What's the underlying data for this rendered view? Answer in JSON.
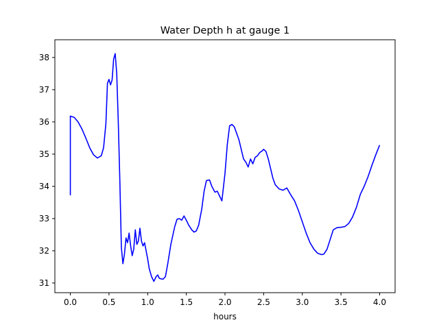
{
  "chart_data": {
    "type": "line",
    "title": "Water Depth h at gauge 1",
    "xlabel": "hours",
    "ylabel": "",
    "xlim": [
      -0.2,
      4.2
    ],
    "ylim": [
      30.7,
      38.55
    ],
    "xticks": [
      0.0,
      0.5,
      1.0,
      1.5,
      2.0,
      2.5,
      3.0,
      3.5,
      4.0
    ],
    "xtick_labels": [
      "0.0",
      "0.5",
      "1.0",
      "1.5",
      "2.0",
      "2.5",
      "3.0",
      "3.5",
      "4.0"
    ],
    "yticks": [
      31,
      32,
      33,
      34,
      35,
      36,
      37,
      38
    ],
    "ytick_labels": [
      "31",
      "32",
      "33",
      "34",
      "35",
      "36",
      "37",
      "38"
    ],
    "grid": false,
    "series_color": "#0000ff",
    "series": [
      {
        "x": [
          0.0,
          0.0,
          0.05,
          0.1,
          0.15,
          0.2,
          0.25,
          0.3,
          0.35,
          0.4,
          0.43,
          0.46,
          0.48,
          0.5,
          0.52,
          0.54,
          0.56,
          0.58,
          0.6,
          0.62,
          0.64,
          0.66,
          0.68,
          0.7,
          0.72,
          0.74,
          0.76,
          0.78,
          0.8,
          0.82,
          0.84,
          0.86,
          0.88,
          0.9,
          0.92,
          0.94,
          0.96,
          0.98,
          1.0,
          1.02,
          1.05,
          1.08,
          1.11,
          1.13,
          1.15,
          1.17,
          1.2,
          1.23,
          1.26,
          1.3,
          1.35,
          1.38,
          1.41,
          1.44,
          1.47,
          1.5,
          1.53,
          1.57,
          1.6,
          1.63,
          1.66,
          1.7,
          1.73,
          1.76,
          1.8,
          1.83,
          1.87,
          1.9,
          1.93,
          1.96,
          2.0,
          2.03,
          2.06,
          2.09,
          2.12,
          2.15,
          2.18,
          2.21,
          2.24,
          2.27,
          2.3,
          2.33,
          2.36,
          2.39,
          2.42,
          2.45,
          2.48,
          2.5,
          2.53,
          2.56,
          2.59,
          2.62,
          2.65,
          2.7,
          2.75,
          2.8,
          2.83,
          2.86,
          2.9,
          2.95,
          3.0,
          3.05,
          3.1,
          3.15,
          3.2,
          3.25,
          3.28,
          3.32,
          3.36,
          3.4,
          3.45,
          3.5,
          3.55,
          3.6,
          3.65,
          3.7,
          3.75,
          3.8,
          3.85,
          3.9,
          3.95,
          4.0
        ],
        "values": [
          33.72,
          36.18,
          36.14,
          36.0,
          35.78,
          35.5,
          35.2,
          34.98,
          34.88,
          34.95,
          35.2,
          35.95,
          37.2,
          37.32,
          37.15,
          37.3,
          37.95,
          38.12,
          37.5,
          36.0,
          34.2,
          32.1,
          31.6,
          31.9,
          32.4,
          32.25,
          32.55,
          32.15,
          31.85,
          32.05,
          32.65,
          32.2,
          32.3,
          32.7,
          32.3,
          32.15,
          32.25,
          32.0,
          31.75,
          31.45,
          31.2,
          31.05,
          31.2,
          31.25,
          31.15,
          31.13,
          31.12,
          31.2,
          31.6,
          32.2,
          32.75,
          32.98,
          33.0,
          32.95,
          33.08,
          32.95,
          32.8,
          32.65,
          32.58,
          32.62,
          32.8,
          33.3,
          33.85,
          34.18,
          34.2,
          34.0,
          33.82,
          33.85,
          33.7,
          33.55,
          34.4,
          35.3,
          35.88,
          35.92,
          35.85,
          35.65,
          35.45,
          35.15,
          34.85,
          34.75,
          34.6,
          34.85,
          34.7,
          34.9,
          34.95,
          35.05,
          35.1,
          35.15,
          35.08,
          34.85,
          34.55,
          34.25,
          34.05,
          33.92,
          33.88,
          33.95,
          33.82,
          33.7,
          33.55,
          33.25,
          32.9,
          32.55,
          32.25,
          32.05,
          31.92,
          31.88,
          31.9,
          32.05,
          32.35,
          32.65,
          32.72,
          32.73,
          32.75,
          32.85,
          33.05,
          33.35,
          33.75,
          34.0,
          34.3,
          34.65,
          34.98,
          35.28
        ]
      }
    ]
  }
}
